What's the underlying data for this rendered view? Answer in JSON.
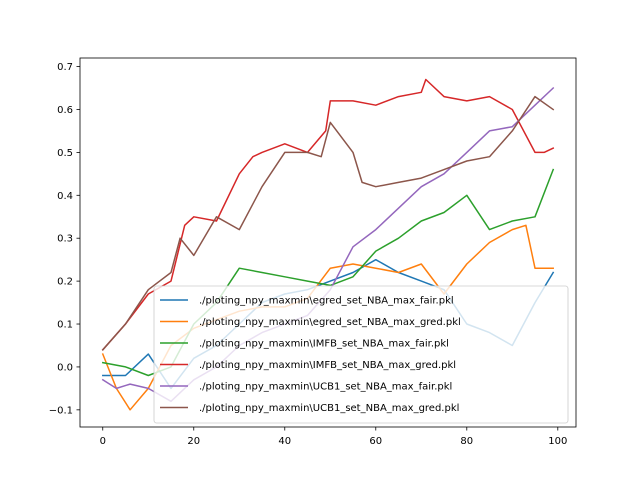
{
  "chart_data": {
    "type": "line",
    "title": "",
    "xlabel": "",
    "ylabel": "",
    "xlim": [
      -5,
      104
    ],
    "ylim": [
      -0.14,
      0.72
    ],
    "xticks": [
      0,
      20,
      40,
      60,
      80,
      100
    ],
    "yticks": [
      -0.1,
      0.0,
      0.1,
      0.2,
      0.3,
      0.4,
      0.5,
      0.6,
      0.7
    ],
    "xtick_labels": [
      "0",
      "20",
      "40",
      "60",
      "80",
      "100"
    ],
    "ytick_labels": [
      "−0.1",
      "0.0",
      "0.1",
      "0.2",
      "0.3",
      "0.4",
      "0.5",
      "0.6",
      "0.7"
    ],
    "grid": false,
    "legend_position": "lower right",
    "series": [
      {
        "name": "./ploting_npy_maxmin\\egred_set_NBA_max_fair.pkl",
        "color": "#1f77b4",
        "x": [
          0,
          5,
          10,
          15,
          20,
          25,
          30,
          35,
          40,
          45,
          50,
          55,
          60,
          65,
          70,
          75,
          80,
          85,
          90,
          95,
          99
        ],
        "y": [
          -0.02,
          -0.02,
          0.03,
          -0.05,
          0.02,
          0.05,
          0.1,
          0.15,
          0.17,
          0.18,
          0.2,
          0.22,
          0.25,
          0.22,
          0.2,
          0.18,
          0.1,
          0.08,
          0.05,
          0.15,
          0.22
        ]
      },
      {
        "name": "./ploting_npy_maxmin\\egred_set_NBA_max_gred.pkl",
        "color": "#ff7f0e",
        "x": [
          0,
          3,
          6,
          10,
          15,
          20,
          25,
          30,
          35,
          40,
          45,
          50,
          55,
          60,
          65,
          70,
          75,
          80,
          85,
          90,
          93,
          95,
          99
        ],
        "y": [
          0.03,
          -0.05,
          -0.1,
          -0.05,
          0.05,
          0.09,
          0.11,
          0.13,
          0.14,
          0.14,
          0.16,
          0.23,
          0.24,
          0.23,
          0.22,
          0.24,
          0.17,
          0.24,
          0.29,
          0.32,
          0.33,
          0.23,
          0.23
        ]
      },
      {
        "name": "./ploting_npy_maxmin\\IMFB_set_NBA_max_fair.pkl",
        "color": "#2ca02c",
        "x": [
          0,
          5,
          10,
          15,
          20,
          25,
          30,
          35,
          40,
          45,
          50,
          55,
          60,
          65,
          70,
          75,
          80,
          85,
          90,
          95,
          99
        ],
        "y": [
          0.01,
          0.0,
          -0.02,
          0.0,
          0.1,
          0.15,
          0.23,
          0.22,
          0.21,
          0.2,
          0.19,
          0.21,
          0.27,
          0.3,
          0.34,
          0.36,
          0.4,
          0.32,
          0.34,
          0.35,
          0.46
        ]
      },
      {
        "name": "./ploting_npy_maxmin\\IMFB_set_NBA_max_gred.pkl",
        "color": "#d62728",
        "x": [
          0,
          5,
          10,
          15,
          18,
          20,
          25,
          30,
          33,
          35,
          40,
          45,
          49,
          50,
          55,
          60,
          65,
          70,
          71,
          75,
          80,
          85,
          90,
          95,
          97,
          99
        ],
        "y": [
          0.04,
          0.1,
          0.17,
          0.2,
          0.33,
          0.35,
          0.34,
          0.45,
          0.49,
          0.5,
          0.52,
          0.5,
          0.55,
          0.62,
          0.62,
          0.61,
          0.63,
          0.64,
          0.67,
          0.63,
          0.62,
          0.63,
          0.6,
          0.5,
          0.5,
          0.51
        ]
      },
      {
        "name": "./ploting_npy_maxmin\\UCB1_set_NBA_max_fair.pkl",
        "color": "#9467bd",
        "x": [
          0,
          3,
          6,
          10,
          15,
          20,
          25,
          30,
          35,
          40,
          45,
          50,
          55,
          60,
          65,
          70,
          75,
          80,
          85,
          90,
          95,
          99
        ],
        "y": [
          -0.03,
          -0.05,
          -0.04,
          -0.05,
          -0.08,
          -0.03,
          0.0,
          0.05,
          0.08,
          0.1,
          0.12,
          0.18,
          0.28,
          0.32,
          0.37,
          0.42,
          0.45,
          0.5,
          0.55,
          0.56,
          0.61,
          0.65
        ]
      },
      {
        "name": "./ploting_npy_maxmin\\UCB1_set_NBA_max_gred.pkl",
        "color": "#8c564b",
        "x": [
          0,
          5,
          10,
          15,
          17,
          20,
          25,
          30,
          35,
          40,
          45,
          48,
          50,
          55,
          57,
          60,
          65,
          70,
          75,
          80,
          85,
          90,
          95,
          99
        ],
        "y": [
          0.04,
          0.1,
          0.18,
          0.22,
          0.3,
          0.26,
          0.35,
          0.32,
          0.42,
          0.5,
          0.5,
          0.49,
          0.57,
          0.5,
          0.43,
          0.42,
          0.43,
          0.44,
          0.46,
          0.48,
          0.49,
          0.55,
          0.63,
          0.6
        ]
      }
    ]
  }
}
